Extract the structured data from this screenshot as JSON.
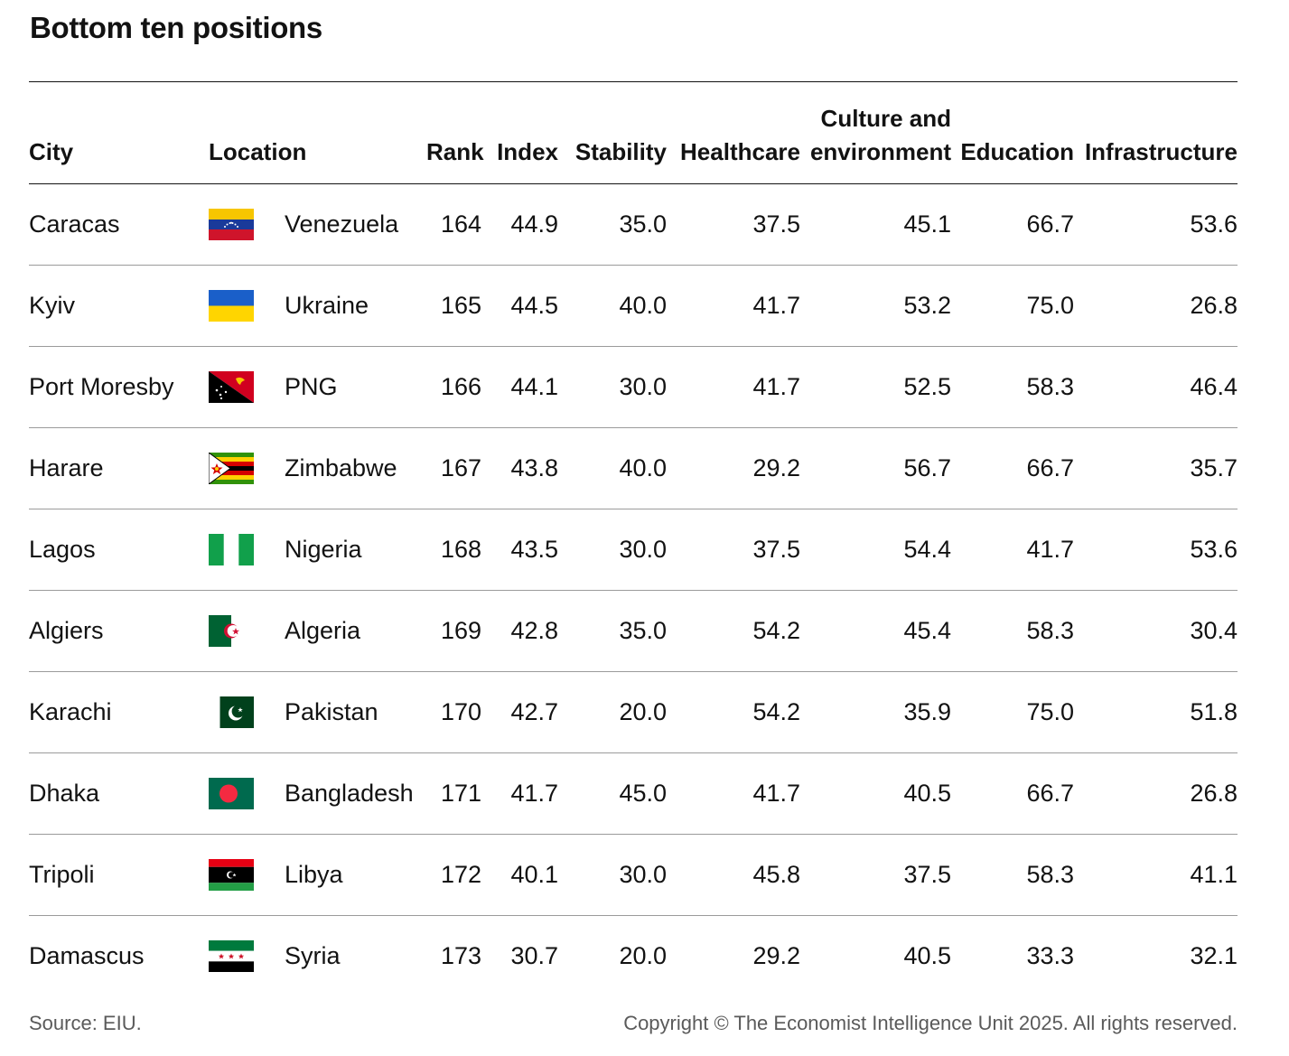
{
  "title": "Bottom ten positions",
  "headers": {
    "city": "City",
    "location": "Location",
    "rank": "Rank",
    "index": "Index",
    "stability": "Stability",
    "healthcare": "Healthcare",
    "culture_line1": "Culture and",
    "culture_line2": "environment",
    "education": "Education",
    "infrastructure": "Infrastructure"
  },
  "chart_data": {
    "type": "table",
    "title": "Bottom ten positions",
    "columns": [
      "City",
      "Location",
      "Rank",
      "Index",
      "Stability",
      "Healthcare",
      "Culture and environment",
      "Education",
      "Infrastructure"
    ],
    "rows": [
      {
        "city": "Caracas",
        "location": "Venezuela",
        "flag": "venezuela-flag-icon",
        "rank": "164",
        "index": "44.9",
        "stability": "35.0",
        "healthcare": "37.5",
        "culture": "45.1",
        "education": "66.7",
        "infrastructure": "53.6"
      },
      {
        "city": "Kyiv",
        "location": "Ukraine",
        "flag": "ukraine-flag-icon",
        "rank": "165",
        "index": "44.5",
        "stability": "40.0",
        "healthcare": "41.7",
        "culture": "53.2",
        "education": "75.0",
        "infrastructure": "26.8"
      },
      {
        "city": "Port Moresby",
        "location": "PNG",
        "flag": "png-flag-icon",
        "rank": "166",
        "index": "44.1",
        "stability": "30.0",
        "healthcare": "41.7",
        "culture": "52.5",
        "education": "58.3",
        "infrastructure": "46.4"
      },
      {
        "city": "Harare",
        "location": "Zimbabwe",
        "flag": "zimbabwe-flag-icon",
        "rank": "167",
        "index": "43.8",
        "stability": "40.0",
        "healthcare": "29.2",
        "culture": "56.7",
        "education": "66.7",
        "infrastructure": "35.7"
      },
      {
        "city": "Lagos",
        "location": "Nigeria",
        "flag": "nigeria-flag-icon",
        "rank": "168",
        "index": "43.5",
        "stability": "30.0",
        "healthcare": "37.5",
        "culture": "54.4",
        "education": "41.7",
        "infrastructure": "53.6"
      },
      {
        "city": "Algiers",
        "location": "Algeria",
        "flag": "algeria-flag-icon",
        "rank": "169",
        "index": "42.8",
        "stability": "35.0",
        "healthcare": "54.2",
        "culture": "45.4",
        "education": "58.3",
        "infrastructure": "30.4"
      },
      {
        "city": "Karachi",
        "location": "Pakistan",
        "flag": "pakistan-flag-icon",
        "rank": "170",
        "index": "42.7",
        "stability": "20.0",
        "healthcare": "54.2",
        "culture": "35.9",
        "education": "75.0",
        "infrastructure": "51.8"
      },
      {
        "city": "Dhaka",
        "location": "Bangladesh",
        "flag": "bangladesh-flag-icon",
        "rank": "171",
        "index": "41.7",
        "stability": "45.0",
        "healthcare": "41.7",
        "culture": "40.5",
        "education": "66.7",
        "infrastructure": "26.8"
      },
      {
        "city": "Tripoli",
        "location": "Libya",
        "flag": "libya-flag-icon",
        "rank": "172",
        "index": "40.1",
        "stability": "30.0",
        "healthcare": "45.8",
        "culture": "37.5",
        "education": "58.3",
        "infrastructure": "41.1"
      },
      {
        "city": "Damascus",
        "location": "Syria",
        "flag": "syria-flag-icon",
        "rank": "173",
        "index": "30.7",
        "stability": "20.0",
        "healthcare": "29.2",
        "culture": "40.5",
        "education": "33.3",
        "infrastructure": "32.1"
      }
    ]
  },
  "footer": {
    "source": "Source: EIU.",
    "copyright": "Copyright © The Economist Intelligence Unit 2025. All rights reserved."
  }
}
